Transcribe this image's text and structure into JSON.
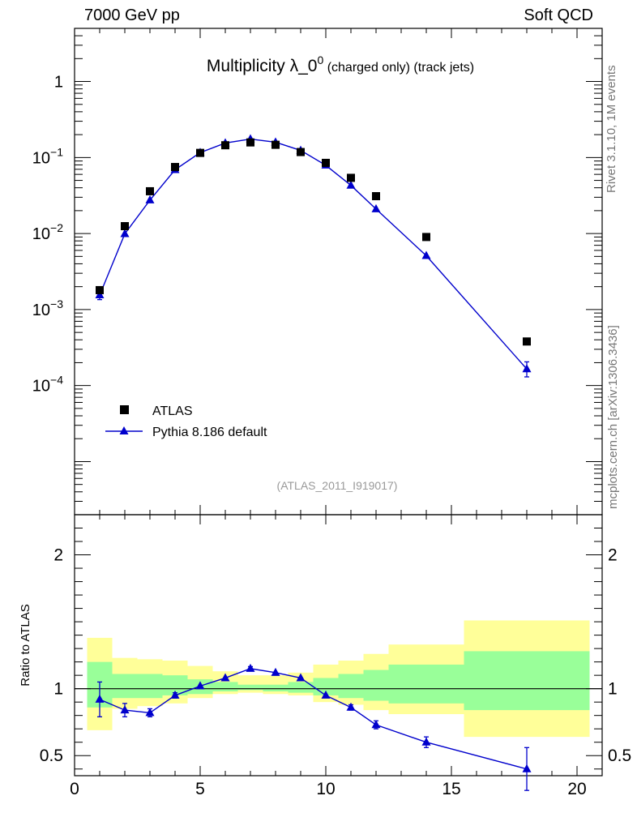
{
  "header": {
    "left": "7000 GeV pp",
    "right": "Soft QCD"
  },
  "side_labels": {
    "rivet": "Rivet 3.1.10,  1M events",
    "mcplots": "mcplots.cern.ch [arXiv:1306.3436]"
  },
  "chart_data": [
    {
      "type": "scatter",
      "title_main": "Multiplicity λ_0",
      "title_sup": "0",
      "title_small": " (charged only) (track jets)",
      "analysis_tag": "(ATLAS_2011_I919017)",
      "yscale": "log",
      "xlim": [
        0,
        21
      ],
      "ylim": [
        2e-06,
        5
      ],
      "xlabel": "",
      "ylabel": "",
      "legend": "bottom-left",
      "y_ticks": [
        {
          "value": 1,
          "base": "1",
          "exp": ""
        },
        {
          "value": 0.1,
          "base": "10",
          "exp": "−1"
        },
        {
          "value": 0.01,
          "base": "10",
          "exp": "−2"
        },
        {
          "value": 0.001,
          "base": "10",
          "exp": "−3"
        },
        {
          "value": 0.0001,
          "base": "10",
          "exp": "−4"
        }
      ],
      "series": [
        {
          "name": "ATLAS",
          "marker": "square",
          "color": "#000000",
          "x": [
            1,
            2,
            3,
            4,
            5,
            6,
            7,
            8,
            9,
            10,
            11,
            12,
            14,
            18
          ],
          "y": [
            0.0018,
            0.0125,
            0.036,
            0.075,
            0.115,
            0.145,
            0.158,
            0.147,
            0.118,
            0.085,
            0.054,
            0.031,
            0.009,
            0.00038
          ]
        },
        {
          "name": "Pythia 8.186 default",
          "marker": "triangle",
          "color": "#0000cc",
          "x": [
            1,
            2,
            3,
            4,
            5,
            6,
            7,
            8,
            9,
            10,
            11,
            12,
            14,
            18
          ],
          "y": [
            0.00155,
            0.0099,
            0.0275,
            0.069,
            0.116,
            0.155,
            0.175,
            0.159,
            0.124,
            0.079,
            0.043,
            0.021,
            0.0051,
            0.000165
          ],
          "err_low": [
            0.0002,
            0,
            0,
            0,
            0,
            0,
            0,
            0,
            0,
            0,
            0,
            0,
            0,
            3.5e-05
          ],
          "err_high": [
            0.0002,
            0,
            0,
            0,
            0,
            0,
            0,
            0,
            0,
            0,
            0,
            0,
            0,
            4e-05
          ]
        }
      ]
    },
    {
      "type": "line",
      "ylabel": "Ratio to ATLAS",
      "xlim": [
        0,
        21
      ],
      "ylim": [
        0.35,
        2.3
      ],
      "x_ticks": [
        0,
        5,
        10,
        15,
        20
      ],
      "y_ticks": [
        0.5,
        1,
        2
      ],
      "reference_line": 1,
      "bands": [
        {
          "x0": 0.5,
          "x1": 1.5,
          "yellow": [
            0.69,
            1.38
          ],
          "green": [
            0.86,
            1.2
          ]
        },
        {
          "x0": 1.5,
          "x1": 2.5,
          "yellow": [
            0.85,
            1.23
          ],
          "green": [
            0.93,
            1.11
          ]
        },
        {
          "x0": 2.5,
          "x1": 3.5,
          "yellow": [
            0.87,
            1.22
          ],
          "green": [
            0.93,
            1.11
          ]
        },
        {
          "x0": 3.5,
          "x1": 4.5,
          "yellow": [
            0.89,
            1.21
          ],
          "green": [
            0.95,
            1.1
          ]
        },
        {
          "x0": 4.5,
          "x1": 5.5,
          "yellow": [
            0.93,
            1.17
          ],
          "green": [
            0.96,
            1.07
          ]
        },
        {
          "x0": 5.5,
          "x1": 6.5,
          "yellow": [
            0.96,
            1.13
          ],
          "green": [
            0.98,
            1.05
          ]
        },
        {
          "x0": 6.5,
          "x1": 7.5,
          "yellow": [
            0.97,
            1.1
          ],
          "green": [
            0.99,
            1.03
          ]
        },
        {
          "x0": 7.5,
          "x1": 8.5,
          "yellow": [
            0.96,
            1.1
          ],
          "green": [
            0.98,
            1.03
          ]
        },
        {
          "x0": 8.5,
          "x1": 9.5,
          "yellow": [
            0.95,
            1.12
          ],
          "green": [
            0.97,
            1.05
          ]
        },
        {
          "x0": 9.5,
          "x1": 10.5,
          "yellow": [
            0.9,
            1.18
          ],
          "green": [
            0.95,
            1.08
          ]
        },
        {
          "x0": 10.5,
          "x1": 11.5,
          "yellow": [
            0.88,
            1.21
          ],
          "green": [
            0.93,
            1.11
          ]
        },
        {
          "x0": 11.5,
          "x1": 12.5,
          "yellow": [
            0.84,
            1.26
          ],
          "green": [
            0.91,
            1.14
          ]
        },
        {
          "x0": 12.5,
          "x1": 15.5,
          "yellow": [
            0.81,
            1.33
          ],
          "green": [
            0.89,
            1.18
          ]
        },
        {
          "x0": 15.5,
          "x1": 20.5,
          "yellow": [
            0.64,
            1.51
          ],
          "green": [
            0.84,
            1.28
          ]
        }
      ],
      "series": [
        {
          "name": "Pythia 8.186 default",
          "color": "#0000cc",
          "x": [
            1,
            2,
            3,
            4,
            5,
            6,
            7,
            8,
            9,
            10,
            11,
            12,
            14,
            18
          ],
          "y": [
            0.92,
            0.84,
            0.82,
            0.95,
            1.02,
            1.08,
            1.15,
            1.12,
            1.08,
            0.95,
            0.86,
            0.73,
            0.6,
            0.4
          ],
          "err_low": [
            0.13,
            0.05,
            0.03,
            0.02,
            0,
            0,
            0.015,
            0,
            0,
            0,
            0.02,
            0.03,
            0.04,
            0.16
          ],
          "err_high": [
            0.13,
            0.05,
            0.03,
            0.02,
            0,
            0,
            0.015,
            0,
            0,
            0,
            0.02,
            0.03,
            0.04,
            0.16
          ]
        }
      ]
    }
  ]
}
